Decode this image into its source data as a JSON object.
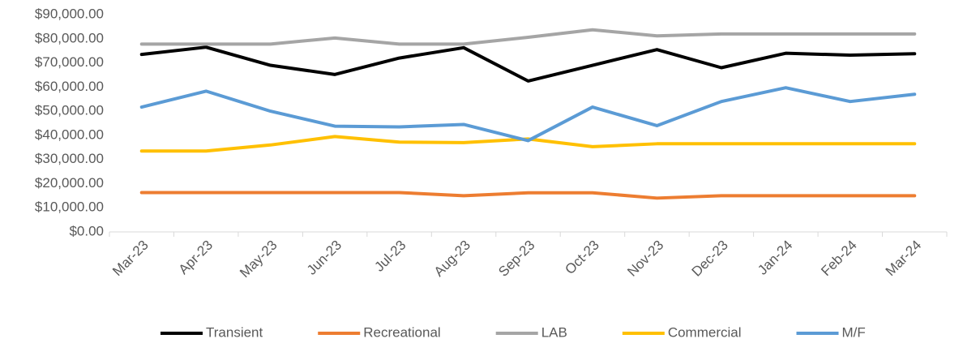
{
  "chart_data": {
    "type": "line",
    "categories": [
      "Mar-23",
      "Apr-23",
      "May-23",
      "Jun-23",
      "Jul-23",
      "Aug-23",
      "Sep-23",
      "Oct-23",
      "Nov-23",
      "Dec-23",
      "Jan-24",
      "Feb-24",
      "Mar-24"
    ],
    "series": [
      {
        "name": "Transient",
        "color": "#000000",
        "values": [
          73500,
          76500,
          69000,
          65200,
          72000,
          76300,
          62500,
          69000,
          75500,
          68000,
          74000,
          73200,
          73800
        ]
      },
      {
        "name": "Recreational",
        "color": "#ed7d31",
        "values": [
          16300,
          16300,
          16300,
          16300,
          16300,
          15000,
          16200,
          16200,
          14000,
          15000,
          15000,
          15000,
          15000
        ]
      },
      {
        "name": "LAB",
        "color": "#a5a5a5",
        "values": [
          77800,
          77800,
          77800,
          80300,
          77800,
          77800,
          80600,
          83700,
          81200,
          82000,
          82000,
          82000,
          82000
        ]
      },
      {
        "name": "Commercial",
        "color": "#ffc000",
        "values": [
          33500,
          33500,
          36000,
          39500,
          37200,
          37000,
          38500,
          35300,
          36500,
          36500,
          36500,
          36500,
          36500
        ]
      },
      {
        "name": "M/F",
        "color": "#5b9bd5",
        "values": [
          51700,
          58300,
          50000,
          43800,
          43500,
          44500,
          37800,
          51700,
          44000,
          54000,
          59700,
          54000,
          57000
        ]
      }
    ],
    "ylim": [
      0,
      90000
    ],
    "yticks": [
      {
        "value": 0,
        "label": "$0.00"
      },
      {
        "value": 10000,
        "label": "$10,000.00"
      },
      {
        "value": 20000,
        "label": "$20,000.00"
      },
      {
        "value": 30000,
        "label": "$30,000.00"
      },
      {
        "value": 40000,
        "label": "$40,000.00"
      },
      {
        "value": 50000,
        "label": "$50,000.00"
      },
      {
        "value": 60000,
        "label": "$60,000.00"
      },
      {
        "value": 70000,
        "label": "$70,000.00"
      },
      {
        "value": 80000,
        "label": "$80,000.00"
      },
      {
        "value": 90000,
        "label": "$90,000.00"
      }
    ],
    "grid": false,
    "legend": "bottom"
  }
}
